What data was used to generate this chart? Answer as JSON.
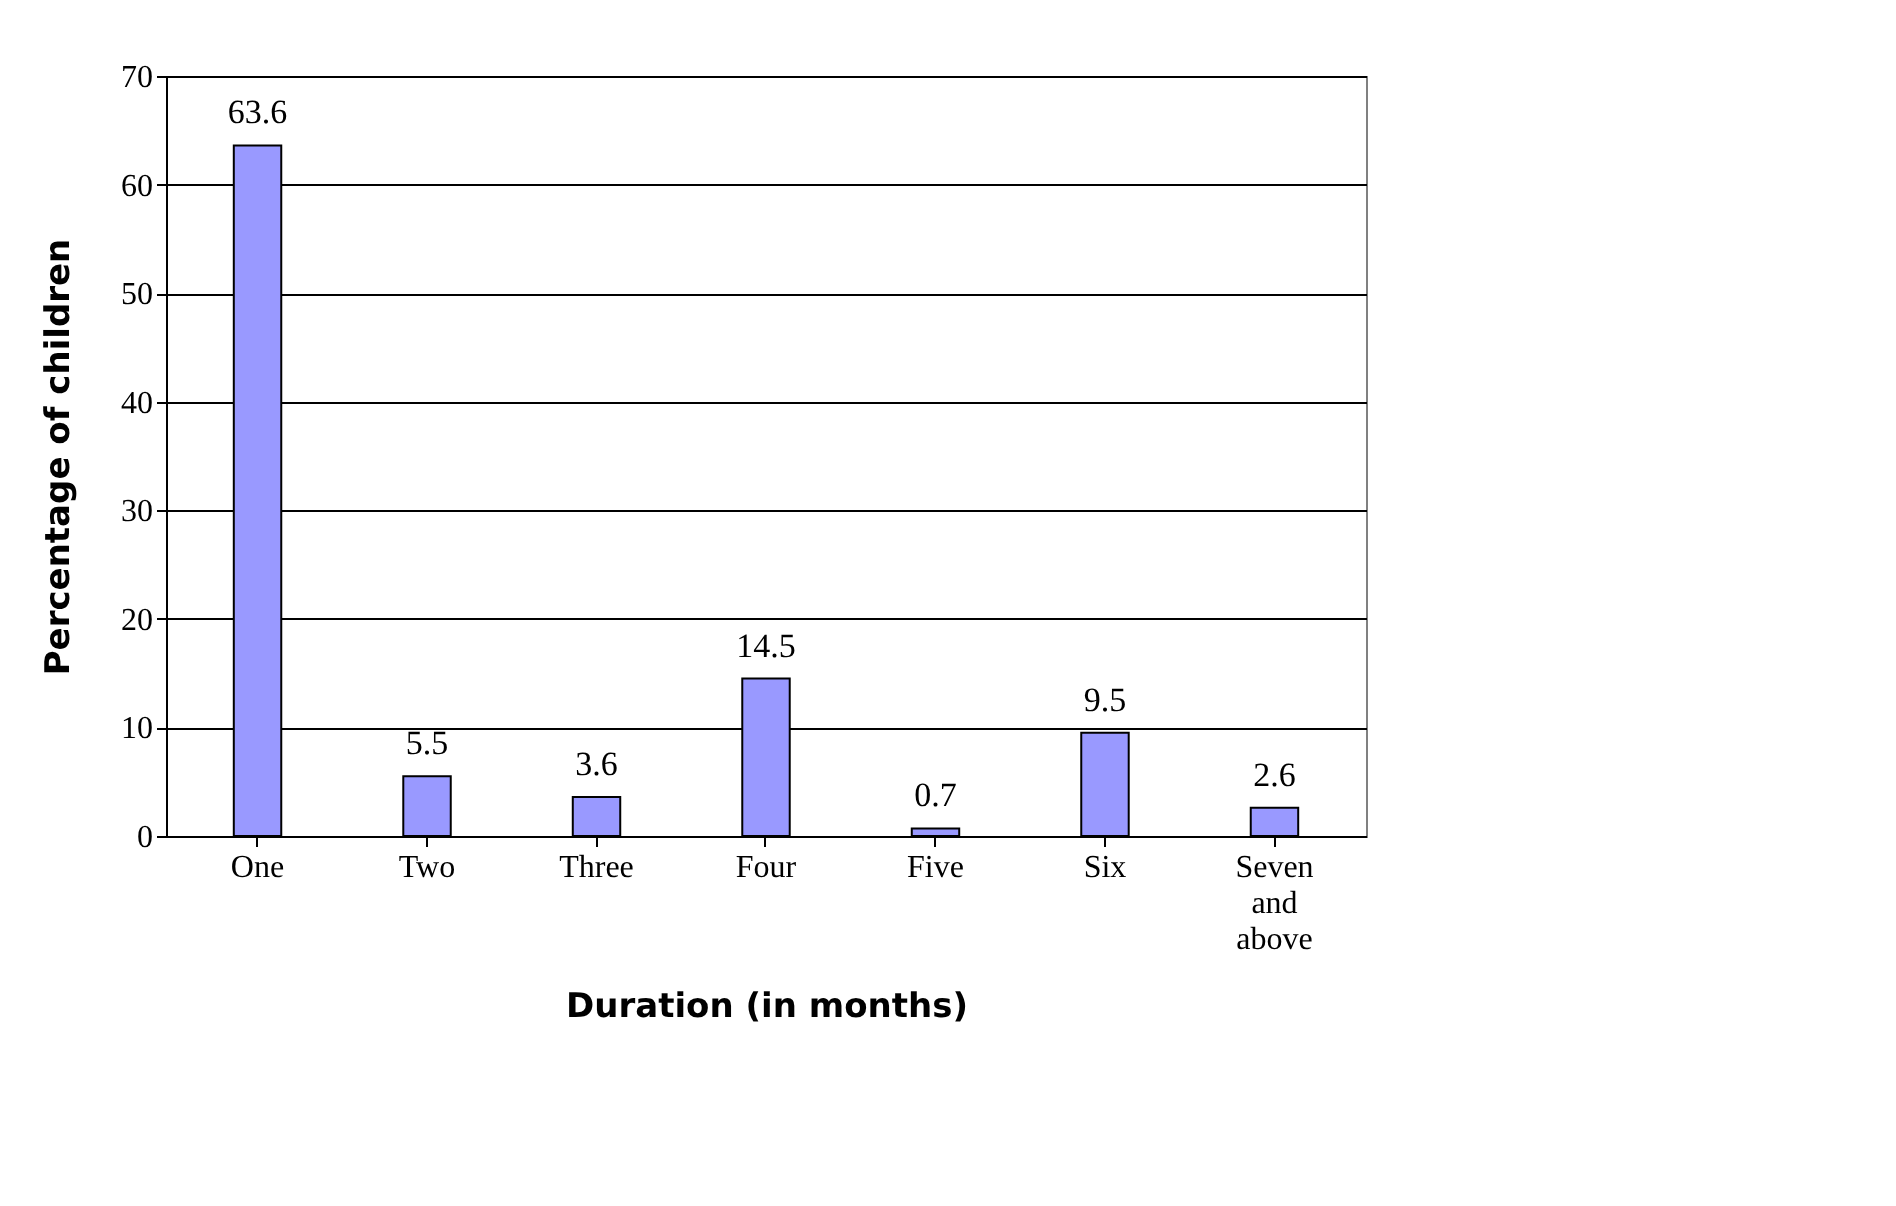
{
  "chart_data": {
    "type": "bar",
    "xlabel": "Duration (in months)",
    "ylabel": "Percentage of children",
    "categories": [
      "One",
      "Two",
      "Three",
      "Four",
      "Five",
      "Six",
      "Seven and above"
    ],
    "values": [
      63.6,
      5.5,
      3.6,
      14.5,
      0.7,
      9.5,
      2.6
    ],
    "color": "#9999ff",
    "ylim": [
      0,
      70
    ],
    "yticks": [
      0,
      10,
      20,
      30,
      40,
      50,
      60,
      70
    ],
    "grid": "y",
    "data_labels": true
  }
}
